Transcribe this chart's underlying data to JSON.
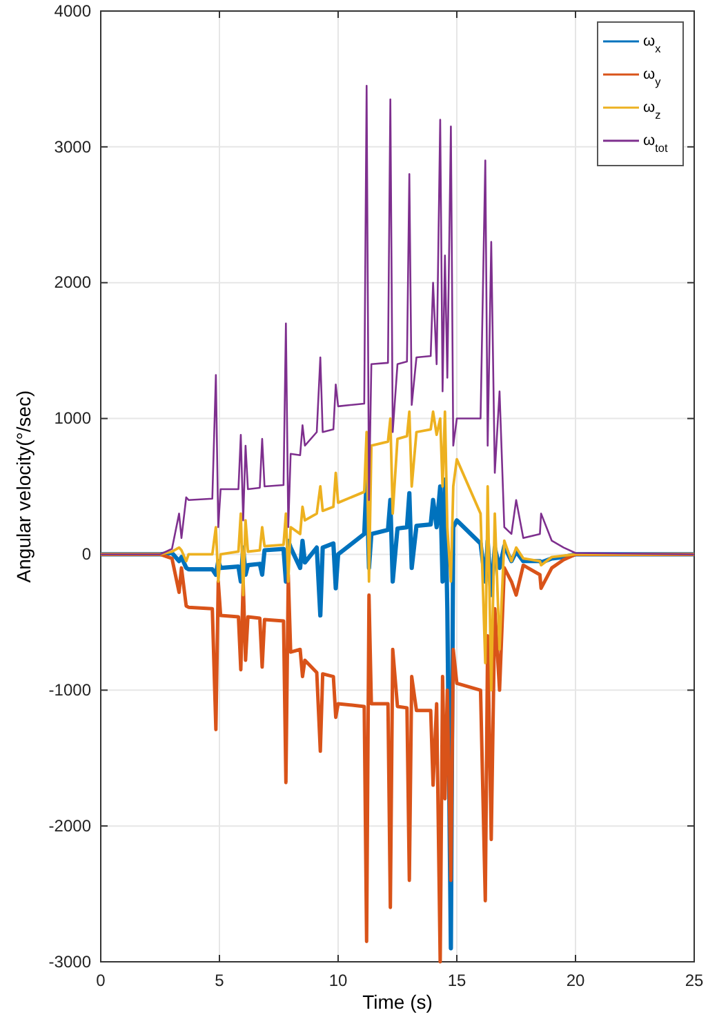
{
  "chart_data": {
    "type": "line",
    "xlabel": "Time (s)",
    "ylabel": "Angular velocity(°/sec)",
    "x": [
      0,
      2.5,
      3.0,
      3.3,
      3.4,
      3.6,
      3.7,
      4.7,
      4.85,
      4.95,
      5.05,
      5.8,
      5.9,
      6.0,
      6.1,
      6.2,
      6.7,
      6.8,
      6.9,
      7.7,
      7.8,
      7.9,
      8.0,
      8.4,
      8.5,
      8.6,
      9.1,
      9.25,
      9.35,
      9.8,
      9.9,
      10.0,
      11.1,
      11.2,
      11.3,
      11.4,
      12.1,
      12.2,
      12.3,
      12.5,
      12.9,
      13.0,
      13.1,
      13.3,
      13.9,
      14.0,
      14.15,
      14.3,
      14.4,
      14.5,
      14.6,
      14.75,
      14.85,
      15.0,
      16.0,
      16.2,
      16.3,
      16.45,
      16.6,
      16.8,
      17.0,
      17.3,
      17.5,
      17.8,
      18.5,
      18.55,
      19.0,
      19.5,
      20.0,
      25
    ],
    "series": [
      {
        "name": "ω$_{x}$",
        "color": "#0072bd",
        "values": [
          0,
          0,
          10,
          -50,
          -20,
          -100,
          -110,
          -110,
          -150,
          -50,
          -100,
          -90,
          -200,
          50,
          -150,
          -80,
          -70,
          -150,
          30,
          40,
          -200,
          100,
          50,
          -100,
          100,
          -60,
          50,
          -450,
          50,
          80,
          -250,
          0,
          150,
          550,
          -100,
          150,
          180,
          400,
          -200,
          190,
          200,
          450,
          -100,
          210,
          220,
          400,
          200,
          500,
          -200,
          550,
          -400,
          -2900,
          200,
          250,
          80,
          -200,
          100,
          -300,
          50,
          -100,
          60,
          -50,
          20,
          -50,
          -50,
          -60,
          -30,
          -20,
          0,
          0
        ]
      },
      {
        "name": "ω$_{y}$",
        "color": "#d95319",
        "values": [
          0,
          0,
          -30,
          -280,
          -100,
          -380,
          -390,
          -400,
          -1290,
          -200,
          -450,
          -460,
          -850,
          -200,
          -780,
          -460,
          -470,
          -830,
          -480,
          -490,
          -1680,
          -150,
          -720,
          -700,
          -900,
          -780,
          -870,
          -1450,
          -880,
          -900,
          -1200,
          -1100,
          -1120,
          -2850,
          -300,
          -1100,
          -1100,
          -2600,
          -700,
          -1120,
          -1130,
          -2400,
          -900,
          -1150,
          -1150,
          -1700,
          -1100,
          -3000,
          -900,
          -1800,
          -1000,
          -2400,
          -700,
          -950,
          -1000,
          -2550,
          -600,
          -2100,
          -400,
          -1000,
          -100,
          -200,
          -300,
          -80,
          -150,
          -250,
          -100,
          -40,
          0,
          0
        ]
      },
      {
        "name": "ω$_{z}$",
        "color": "#edb120",
        "values": [
          0,
          0,
          20,
          50,
          30,
          -50,
          0,
          0,
          200,
          -200,
          0,
          20,
          300,
          -300,
          250,
          20,
          30,
          200,
          60,
          70,
          300,
          -200,
          200,
          150,
          350,
          250,
          300,
          500,
          320,
          350,
          600,
          380,
          460,
          900,
          -200,
          800,
          830,
          1000,
          300,
          850,
          870,
          1050,
          500,
          900,
          920,
          1050,
          880,
          1000,
          500,
          1050,
          200,
          -200,
          500,
          700,
          300,
          -800,
          500,
          -1000,
          300,
          -700,
          100,
          -50,
          50,
          -30,
          -50,
          -80,
          -20,
          -10,
          0,
          0
        ]
      },
      {
        "name": "ω$_{tot}$",
        "color": "#7e2f8e",
        "values": [
          0,
          0,
          40,
          300,
          120,
          420,
          400,
          410,
          1320,
          200,
          480,
          480,
          880,
          250,
          800,
          480,
          490,
          850,
          500,
          510,
          1700,
          200,
          740,
          730,
          950,
          800,
          900,
          1450,
          900,
          920,
          1250,
          1090,
          1110,
          3450,
          400,
          1400,
          1410,
          3350,
          900,
          1400,
          1420,
          2800,
          1100,
          1450,
          1460,
          2000,
          1400,
          3200,
          1200,
          2200,
          1300,
          3150,
          800,
          1000,
          1000,
          2900,
          800,
          2300,
          600,
          1200,
          200,
          150,
          400,
          120,
          150,
          300,
          100,
          50,
          10,
          0
        ]
      }
    ],
    "xlim": [
      0,
      25
    ],
    "xticks": [
      0,
      5,
      10,
      15,
      20,
      25
    ],
    "ylim": [
      -3000,
      4000
    ],
    "yticks": [
      -3000,
      -2000,
      -1000,
      0,
      1000,
      2000,
      3000,
      4000
    ],
    "grid": true,
    "legend": "top right"
  }
}
